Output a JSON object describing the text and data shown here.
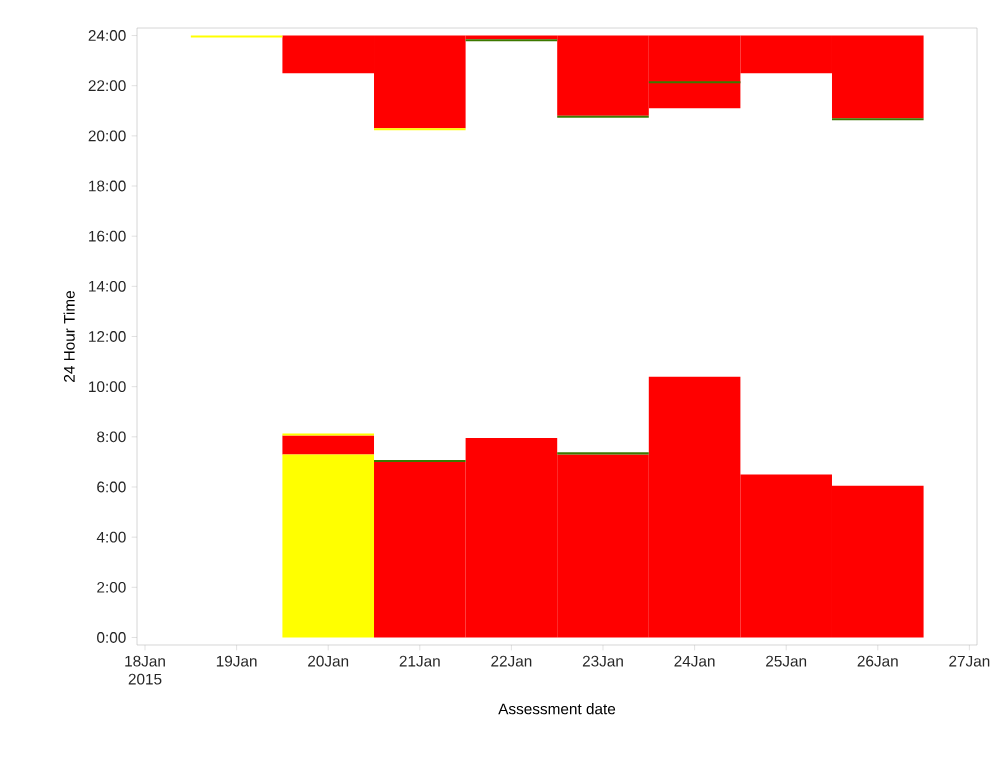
{
  "chart_data": {
    "type": "bar",
    "xlabel": "Assessment date",
    "ylabel": "24 Hour Time",
    "xlim": [
      "2015-01-17T21:54",
      "2015-01-27T02:00"
    ],
    "xticks": [
      {
        "value": "2015-01-18",
        "label": "18Jan 2015"
      },
      {
        "value": "2015-01-19",
        "label": "19Jan"
      },
      {
        "value": "2015-01-20",
        "label": "20Jan"
      },
      {
        "value": "2015-01-21",
        "label": "21Jan"
      },
      {
        "value": "2015-01-22",
        "label": "22Jan"
      },
      {
        "value": "2015-01-23",
        "label": "23Jan"
      },
      {
        "value": "2015-01-24",
        "label": "24Jan"
      },
      {
        "value": "2015-01-25",
        "label": "25Jan"
      },
      {
        "value": "2015-01-26",
        "label": "26Jan"
      },
      {
        "value": "2015-01-27",
        "label": "27Jan"
      }
    ],
    "ylim": [
      -0.3,
      24.3
    ],
    "yticks": [
      {
        "value": 0,
        "label": "0:00"
      },
      {
        "value": 2,
        "label": "2:00"
      },
      {
        "value": 4,
        "label": "4:00"
      },
      {
        "value": 6,
        "label": "6:00"
      },
      {
        "value": 8,
        "label": "8:00"
      },
      {
        "value": 10,
        "label": "10:00"
      },
      {
        "value": 12,
        "label": "12:00"
      },
      {
        "value": 14,
        "label": "14:00"
      },
      {
        "value": 16,
        "label": "16:00"
      },
      {
        "value": 18,
        "label": "18:00"
      },
      {
        "value": 20,
        "label": "20:00"
      },
      {
        "value": 22,
        "label": "22:00"
      },
      {
        "value": 24,
        "label": "24:00"
      }
    ],
    "series": [
      {
        "color": "#ff0000",
        "x": [
          "2015-01-20",
          "2015-01-21",
          "2015-01-22",
          "2015-01-23",
          "2015-01-24",
          "2015-01-25",
          "2015-01-26"
        ],
        "base": [
          22.5,
          20.3,
          23.85,
          20.8,
          21.1,
          22.5,
          20.7
        ],
        "values": [
          1.5,
          3.7,
          0.15,
          3.2,
          2.9,
          1.5,
          3.3
        ]
      },
      {
        "color": "#ff0000",
        "x": [
          "2015-01-20",
          "2015-01-21",
          "2015-01-22",
          "2015-01-23",
          "2015-01-24",
          "2015-01-25",
          "2015-01-26"
        ],
        "base": [
          7.3,
          0,
          0,
          0,
          0,
          0,
          0
        ],
        "values": [
          0.75,
          7.0,
          7.95,
          7.3,
          10.4,
          6.5,
          6.05
        ]
      },
      {
        "color": "#ffff00",
        "x": [
          "2015-01-19",
          "2015-01-20",
          "2015-01-21"
        ],
        "base": [
          23.92,
          0,
          20.22
        ],
        "values": [
          0.08,
          7.3,
          0.08
        ]
      },
      {
        "color": "#ffff00",
        "x": [
          "2015-01-20"
        ],
        "base": [
          8.05
        ],
        "values": [
          0.08
        ]
      },
      {
        "color": "#3c7800",
        "x": [
          "2015-01-21",
          "2015-01-22",
          "2015-01-23",
          "2015-01-24",
          "2015-01-26"
        ],
        "base": [
          7.0,
          23.77,
          20.72,
          22.1,
          20.62
        ],
        "values": [
          0.08,
          0.08,
          0.08,
          0.08,
          0.08
        ]
      },
      {
        "color": "#3c7800",
        "x": [
          "2015-01-23"
        ],
        "base": [
          7.3
        ],
        "values": [
          0.08
        ]
      }
    ]
  }
}
